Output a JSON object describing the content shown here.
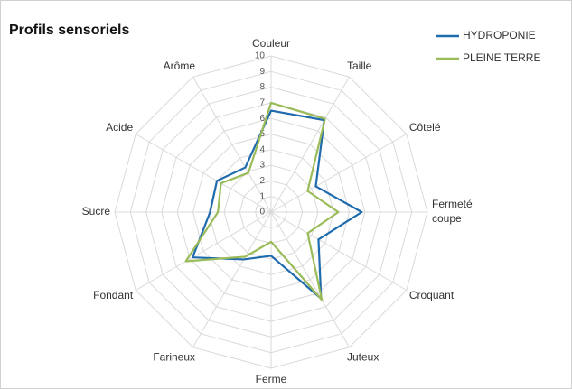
{
  "chart_data": {
    "type": "radar",
    "title": "Profils sensoriels",
    "categories": [
      "Couleur",
      "Taille",
      "Côtelé",
      "Fermeté coupe",
      "Croquant",
      "Juteux",
      "Ferme",
      "Farineux",
      "Fondant",
      "Sucre",
      "Acide",
      "Arôme"
    ],
    "series": [
      {
        "name": "HYDROPONIE",
        "color": "#1f6bad",
        "values": [
          6.5,
          6.8,
          3.3,
          5.8,
          3.5,
          6.4,
          2.8,
          3.5,
          5.8,
          3.9,
          4.0,
          3.3
        ]
      },
      {
        "name": "PLEINE TERRE",
        "color": "#9bbb59",
        "values": [
          7.0,
          6.9,
          2.7,
          4.3,
          2.7,
          6.5,
          1.9,
          3.3,
          6.3,
          3.4,
          3.7,
          2.9
        ]
      }
    ],
    "rlim": [
      0,
      10
    ],
    "rticks": [
      0,
      1,
      2,
      3,
      4,
      5,
      6,
      7,
      8,
      9,
      10
    ],
    "grid": true,
    "legend": "top-right"
  }
}
